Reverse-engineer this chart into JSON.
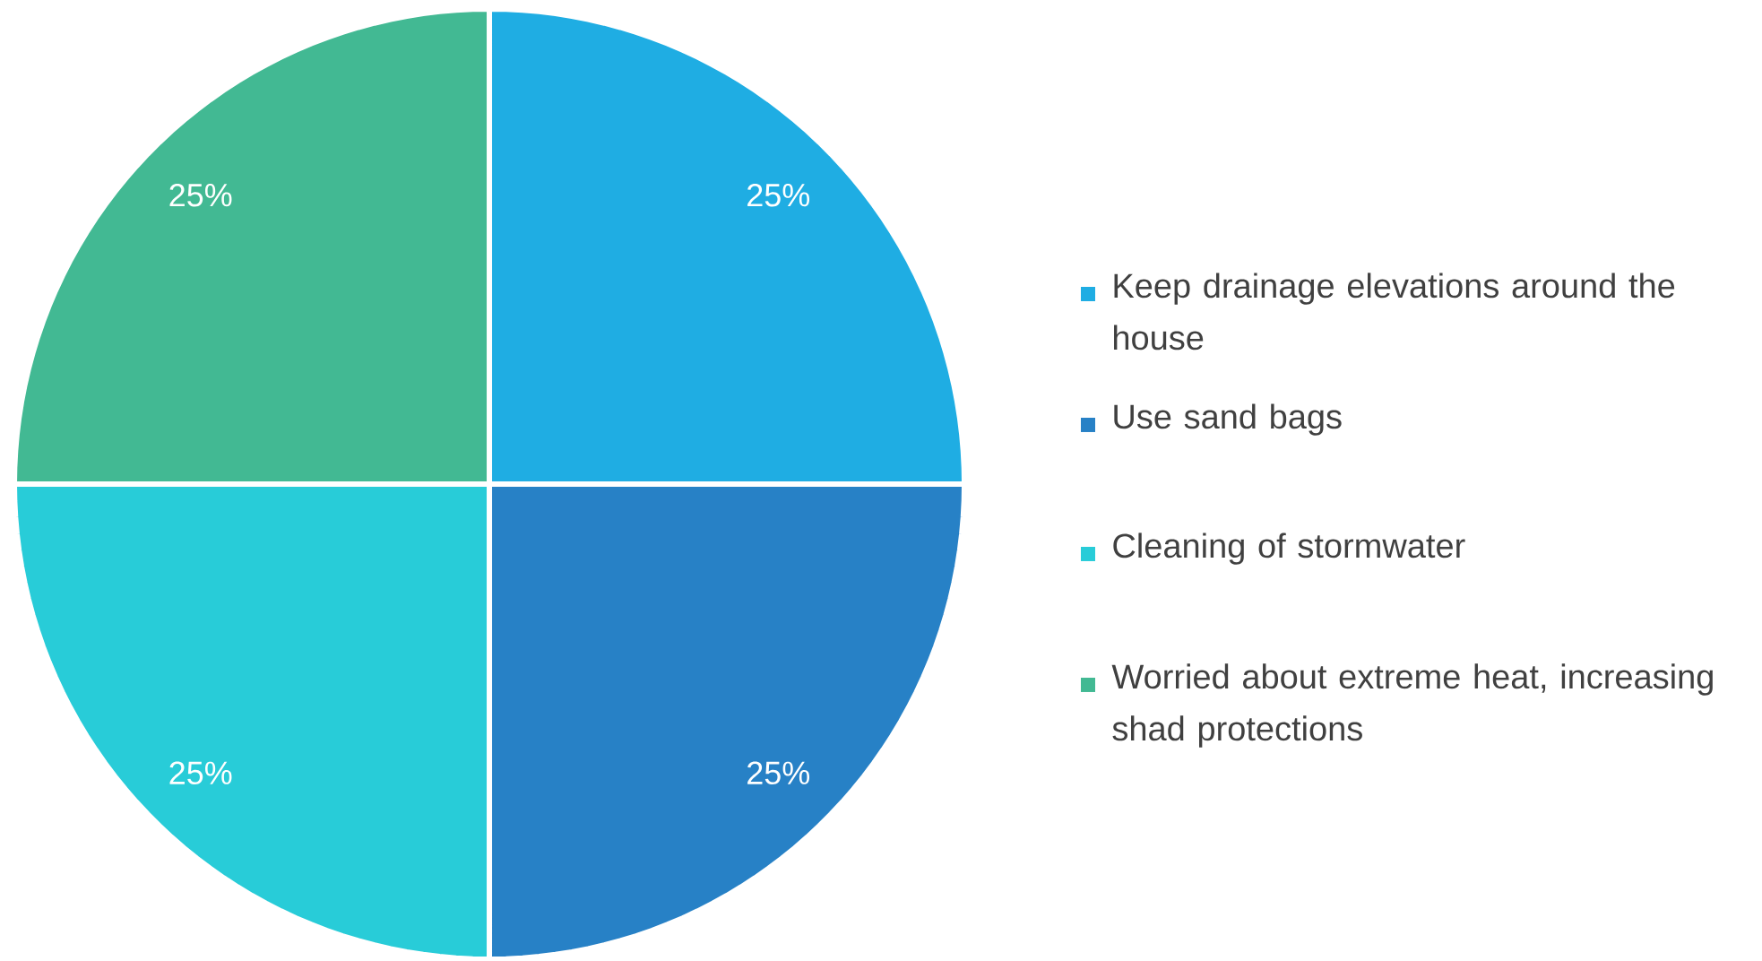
{
  "chart_data": {
    "type": "pie",
    "categories": [
      "Keep drainage elevations around the house",
      "Use sand bags",
      "Cleaning of stormwater",
      "Worried about extreme heat, increasing shad protections"
    ],
    "values": [
      25,
      25,
      25,
      25
    ],
    "value_labels": [
      "25%",
      "25%",
      "25%",
      "25%"
    ],
    "colors": [
      "#1fade3",
      "#2781c6",
      "#28ccd8",
      "#42b993"
    ],
    "legend": "right"
  }
}
